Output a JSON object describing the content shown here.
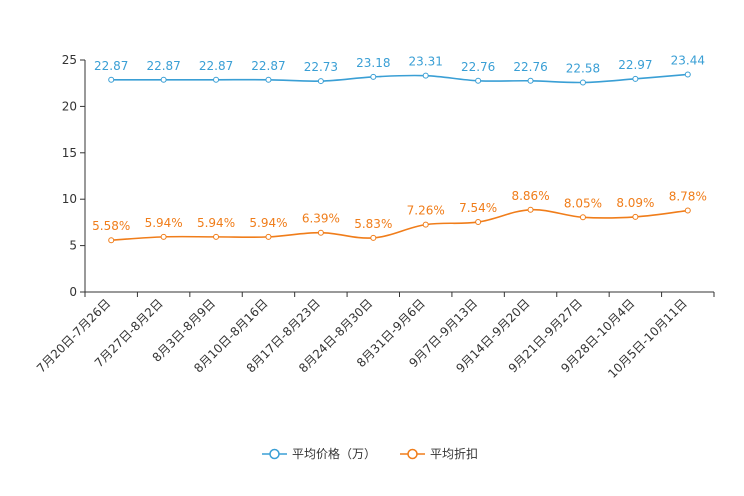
{
  "chart_data": {
    "type": "line",
    "title": "",
    "xlabel": "",
    "ylabel": "",
    "ylim": [
      0,
      25
    ],
    "yticks": [
      0,
      5,
      10,
      15,
      20,
      25
    ],
    "grid": false,
    "legend_position": "bottom-center",
    "categories": [
      "7月20日-7月26日",
      "7月27日-8月2日",
      "8月3日-8月9日",
      "8月10日-8月16日",
      "8月17日-8月23日",
      "8月24日-8月30日",
      "8月31日-9月6日",
      "9月7日-9月13日",
      "9月14日-9月20日",
      "9月21日-9月27日",
      "9月28日-10月4日",
      "10月5日-10月11日"
    ],
    "series": [
      {
        "name": "平均价格（万）",
        "color": "#3a9fd5",
        "values": [
          22.87,
          22.87,
          22.87,
          22.87,
          22.73,
          23.18,
          23.31,
          22.76,
          22.76,
          22.58,
          22.97,
          23.44
        ],
        "labels": [
          "22.87",
          "22.87",
          "22.87",
          "22.87",
          "22.73",
          "23.18",
          "23.31",
          "22.76",
          "22.76",
          "22.58",
          "22.97",
          "23.44"
        ]
      },
      {
        "name": "平均折扣",
        "color": "#f07d1a",
        "values": [
          5.58,
          5.94,
          5.94,
          5.94,
          6.39,
          5.83,
          7.26,
          7.54,
          8.86,
          8.05,
          8.09,
          8.78
        ],
        "labels": [
          "5.58%",
          "5.94%",
          "5.94%",
          "5.94%",
          "6.39%",
          "5.83%",
          "7.26%",
          "7.54%",
          "8.86%",
          "8.05%",
          "8.09%",
          "8.78%"
        ]
      }
    ]
  }
}
